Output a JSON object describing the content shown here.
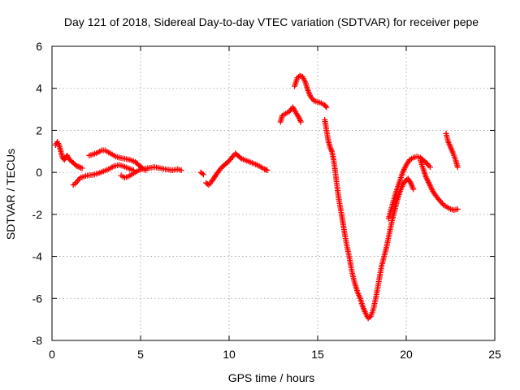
{
  "chart_data": {
    "type": "scatter",
    "title": "Day 121 of 2018, Sidereal Day-to-day VTEC variation (SDTVAR) for receiver pepe",
    "xlabel": "GPS time / hours",
    "ylabel": "SDTVAR / TECUs",
    "xlim": [
      0,
      25
    ],
    "ylim": [
      -8,
      6
    ],
    "xticks": [
      0,
      5,
      10,
      15,
      20,
      25
    ],
    "yticks": [
      -8,
      -6,
      -4,
      -2,
      0,
      2,
      4,
      6
    ],
    "grid": true,
    "marker": "plus",
    "series": [
      {
        "name": "SDTVAR",
        "color": "#ff0000",
        "segments": [
          [
            [
              0.2,
              1.3
            ],
            [
              0.3,
              1.45
            ],
            [
              0.4,
              1.3
            ],
            [
              0.5,
              1.0
            ],
            [
              0.6,
              0.7
            ],
            [
              0.7,
              0.6
            ],
            [
              0.85,
              0.8
            ],
            [
              1.0,
              0.6
            ],
            [
              1.2,
              0.45
            ],
            [
              1.4,
              0.3
            ],
            [
              1.55,
              0.25
            ],
            [
              1.7,
              0.2
            ]
          ],
          [
            [
              1.2,
              -0.6
            ],
            [
              1.3,
              -0.55
            ],
            [
              1.45,
              -0.4
            ],
            [
              1.6,
              -0.25
            ],
            [
              1.8,
              -0.2
            ],
            [
              2.0,
              -0.15
            ],
            [
              2.3,
              -0.12
            ],
            [
              2.6,
              -0.05
            ],
            [
              2.9,
              0.05
            ],
            [
              3.2,
              0.15
            ],
            [
              3.5,
              0.3
            ],
            [
              3.8,
              0.35
            ],
            [
              4.0,
              0.3
            ],
            [
              4.3,
              0.2
            ],
            [
              4.6,
              0.1
            ]
          ],
          [
            [
              2.1,
              0.8
            ],
            [
              2.3,
              0.85
            ],
            [
              2.6,
              0.95
            ],
            [
              2.8,
              1.05
            ],
            [
              3.0,
              1.05
            ],
            [
              3.2,
              0.95
            ],
            [
              3.4,
              0.85
            ],
            [
              3.6,
              0.75
            ],
            [
              3.8,
              0.7
            ],
            [
              4.1,
              0.65
            ],
            [
              4.4,
              0.6
            ],
            [
              4.7,
              0.5
            ],
            [
              4.9,
              0.35
            ],
            [
              5.1,
              0.2
            ],
            [
              5.3,
              0.1
            ]
          ],
          [
            [
              3.9,
              -0.15
            ],
            [
              4.1,
              -0.25
            ],
            [
              4.3,
              -0.2
            ],
            [
              4.5,
              -0.1
            ],
            [
              4.7,
              0.0
            ],
            [
              4.9,
              0.1
            ],
            [
              5.1,
              0.15
            ],
            [
              5.4,
              0.2
            ],
            [
              5.8,
              0.25
            ],
            [
              6.1,
              0.2
            ],
            [
              6.4,
              0.15
            ],
            [
              6.8,
              0.1
            ],
            [
              7.1,
              0.15
            ],
            [
              7.3,
              0.1
            ]
          ],
          [
            [
              8.4,
              0.0
            ],
            [
              8.55,
              -0.1
            ]
          ],
          [
            [
              8.7,
              -0.5
            ],
            [
              8.85,
              -0.6
            ],
            [
              9.0,
              -0.45
            ],
            [
              9.2,
              -0.2
            ],
            [
              9.4,
              0.05
            ],
            [
              9.6,
              0.25
            ],
            [
              9.8,
              0.4
            ],
            [
              10.0,
              0.55
            ],
            [
              10.2,
              0.75
            ],
            [
              10.35,
              0.9
            ],
            [
              10.5,
              0.8
            ],
            [
              10.7,
              0.65
            ],
            [
              11.0,
              0.55
            ],
            [
              11.3,
              0.45
            ],
            [
              11.6,
              0.35
            ],
            [
              11.8,
              0.25
            ],
            [
              12.0,
              0.15
            ],
            [
              12.15,
              0.1
            ]
          ],
          [
            [
              12.9,
              2.4
            ],
            [
              13.0,
              2.7
            ],
            [
              13.2,
              2.8
            ],
            [
              13.4,
              2.9
            ],
            [
              13.6,
              3.1
            ],
            [
              13.8,
              2.8
            ],
            [
              13.95,
              2.6
            ],
            [
              14.05,
              2.4
            ]
          ],
          [
            [
              13.7,
              4.1
            ],
            [
              13.85,
              4.5
            ],
            [
              14.0,
              4.6
            ],
            [
              14.15,
              4.55
            ],
            [
              14.3,
              4.3
            ],
            [
              14.45,
              3.9
            ],
            [
              14.6,
              3.6
            ],
            [
              14.8,
              3.4
            ],
            [
              15.0,
              3.35
            ],
            [
              15.2,
              3.3
            ],
            [
              15.4,
              3.2
            ],
            [
              15.5,
              3.1
            ]
          ],
          [
            [
              15.4,
              2.5
            ],
            [
              15.5,
              2.0
            ],
            [
              15.6,
              1.5
            ],
            [
              15.7,
              1.2
            ],
            [
              15.8,
              1.0
            ],
            [
              15.9,
              0.6
            ],
            [
              16.0,
              0.0
            ],
            [
              16.1,
              -0.7
            ],
            [
              16.2,
              -1.3
            ],
            [
              16.35,
              -2.0
            ],
            [
              16.5,
              -2.8
            ],
            [
              16.65,
              -3.5
            ],
            [
              16.8,
              -4.1
            ],
            [
              16.95,
              -4.8
            ],
            [
              17.1,
              -5.3
            ],
            [
              17.25,
              -5.7
            ],
            [
              17.4,
              -6.0
            ],
            [
              17.55,
              -6.4
            ],
            [
              17.7,
              -6.7
            ],
            [
              17.85,
              -6.95
            ],
            [
              18.0,
              -6.85
            ],
            [
              18.15,
              -6.5
            ],
            [
              18.3,
              -5.9
            ],
            [
              18.45,
              -5.2
            ],
            [
              18.6,
              -4.5
            ],
            [
              18.75,
              -4.0
            ],
            [
              18.9,
              -3.5
            ],
            [
              19.05,
              -2.9
            ],
            [
              19.2,
              -2.3
            ],
            [
              19.35,
              -1.8
            ],
            [
              19.5,
              -1.3
            ],
            [
              19.65,
              -0.9
            ],
            [
              19.8,
              -0.6
            ],
            [
              19.95,
              -0.4
            ],
            [
              20.1,
              -0.3
            ],
            [
              20.25,
              -0.5
            ],
            [
              20.4,
              -0.8
            ]
          ],
          [
            [
              19.0,
              -2.2
            ],
            [
              19.2,
              -1.6
            ],
            [
              19.4,
              -1.0
            ],
            [
              19.6,
              -0.5
            ],
            [
              19.8,
              0.0
            ],
            [
              20.0,
              0.35
            ],
            [
              20.2,
              0.6
            ],
            [
              20.4,
              0.7
            ],
            [
              20.6,
              0.75
            ],
            [
              20.8,
              0.7
            ],
            [
              21.0,
              0.55
            ],
            [
              21.2,
              0.4
            ],
            [
              21.35,
              0.25
            ]
          ],
          [
            [
              20.8,
              0.55
            ],
            [
              20.95,
              0.2
            ],
            [
              21.1,
              -0.2
            ],
            [
              21.3,
              -0.55
            ],
            [
              21.5,
              -0.9
            ],
            [
              21.7,
              -1.15
            ],
            [
              21.9,
              -1.35
            ],
            [
              22.1,
              -1.55
            ],
            [
              22.3,
              -1.65
            ],
            [
              22.5,
              -1.75
            ],
            [
              22.7,
              -1.8
            ],
            [
              22.9,
              -1.75
            ]
          ],
          [
            [
              22.25,
              1.85
            ],
            [
              22.35,
              1.5
            ],
            [
              22.5,
              1.2
            ],
            [
              22.65,
              0.9
            ],
            [
              22.8,
              0.55
            ],
            [
              22.9,
              0.25
            ]
          ]
        ]
      }
    ]
  }
}
